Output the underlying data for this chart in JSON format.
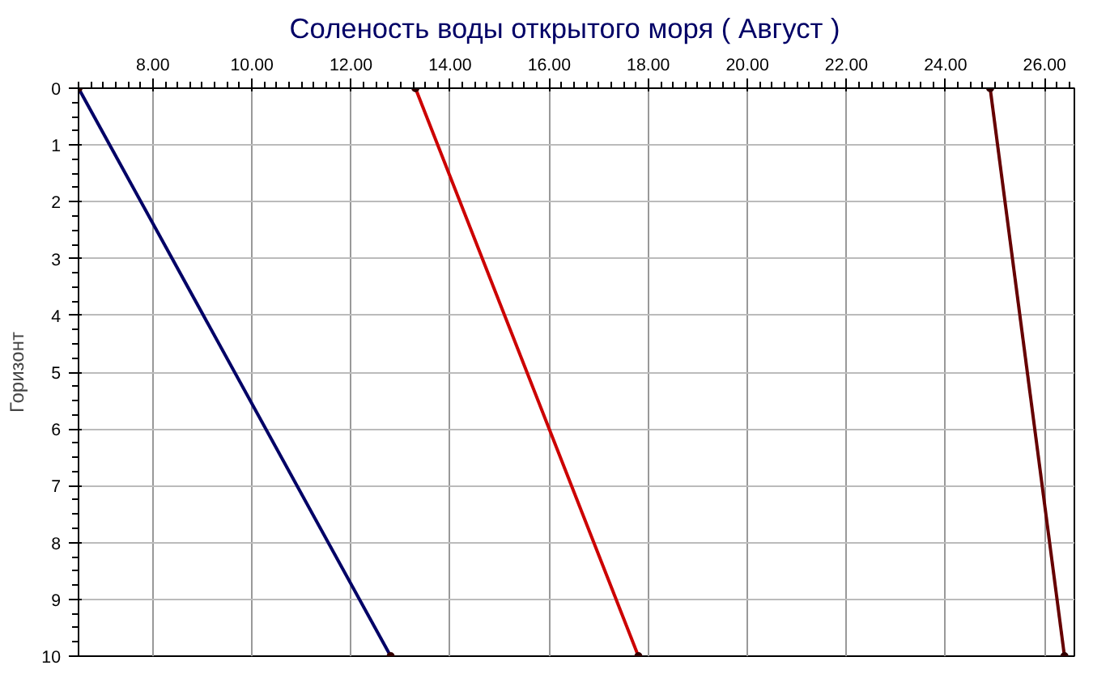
{
  "chart_data": {
    "type": "line",
    "title": "Соленость воды открытого моря    ( Август )",
    "ylabel": "Горизонт",
    "xlim": [
      6.5,
      26.6
    ],
    "xticks": [
      {
        "value": 8,
        "label": "8.00"
      },
      {
        "value": 10,
        "label": "10.00"
      },
      {
        "value": 12,
        "label": "12.00"
      },
      {
        "value": 14,
        "label": "14.00"
      },
      {
        "value": 16,
        "label": "16.00"
      },
      {
        "value": 18,
        "label": "18.00"
      },
      {
        "value": 20,
        "label": "20.00"
      },
      {
        "value": 22,
        "label": "22.00"
      },
      {
        "value": 24,
        "label": "24.00"
      },
      {
        "value": 26,
        "label": "26.00"
      }
    ],
    "ylim": [
      10,
      0
    ],
    "yticks": [
      0,
      1,
      2,
      3,
      4,
      5,
      6,
      7,
      8,
      9,
      10
    ],
    "grid": true,
    "marker": "circle",
    "line_style": "solid",
    "series": [
      {
        "color": "#000066",
        "x": [
          6.5,
          12.8
        ],
        "values": [
          0,
          10
        ]
      },
      {
        "color": "#cc0000",
        "x": [
          13.3,
          17.8
        ],
        "values": [
          0,
          10
        ]
      },
      {
        "color": "#660000",
        "x": [
          24.9,
          26.4
        ],
        "values": [
          0,
          10
        ]
      }
    ]
  }
}
